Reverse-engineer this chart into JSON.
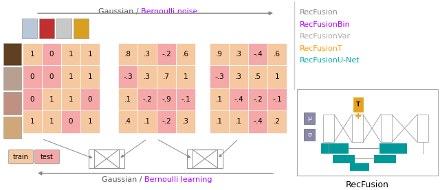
{
  "legend_items": [
    {
      "text": "RecFusion",
      "color": "#888888"
    },
    {
      "text": "RecFusionBin",
      "color": "#aa00ff"
    },
    {
      "text": "RecFusionVar",
      "color": "#aaaaaa"
    },
    {
      "text": "RecFusionT",
      "color": "#ff9900"
    },
    {
      "text": "RecFusionU-Net",
      "color": "#00aaaa"
    }
  ],
  "matrix1_values": [
    [
      "1",
      "0",
      "1",
      "1"
    ],
    [
      "0",
      "0",
      "1",
      "1"
    ],
    [
      "0",
      "1",
      "1",
      "0"
    ],
    [
      "1",
      "1",
      "0",
      "1"
    ]
  ],
  "matrix1_colors": [
    [
      "#f5c8a0",
      "#f5a8a8",
      "#f5c8a0",
      "#f5c8a0"
    ],
    [
      "#f5a8a8",
      "#f5a8a8",
      "#f5c8a0",
      "#f5c8a0"
    ],
    [
      "#f5a8a8",
      "#f5c8a0",
      "#f5c8a0",
      "#f5a8a8"
    ],
    [
      "#f5c8a0",
      "#f5c8a0",
      "#f5a8a8",
      "#f5c8a0"
    ]
  ],
  "matrix2_values": [
    [
      ".8",
      ".3",
      "-.2",
      ".6"
    ],
    [
      "-.3",
      ".3",
      ".7",
      "1"
    ],
    [
      ".1",
      "-.2",
      "-.9",
      "-.1"
    ],
    [
      ".4",
      ".1",
      "-.2",
      ".3"
    ]
  ],
  "matrix2_colors": [
    [
      "#f5c8a0",
      "#f5c8a0",
      "#f5a8a8",
      "#f5c8a0"
    ],
    [
      "#f5a8a8",
      "#f5c8a0",
      "#f5c8a0",
      "#f5c8a0"
    ],
    [
      "#f5c8a0",
      "#f5a8a8",
      "#f5a8a8",
      "#f5a8a8"
    ],
    [
      "#f5c8a0",
      "#f5c8a0",
      "#f5a8a8",
      "#f5c8a0"
    ]
  ],
  "matrix3_values": [
    [
      ".9",
      ".3",
      "-.4",
      ".6"
    ],
    [
      "-.3",
      ".3",
      ".5",
      "1"
    ],
    [
      ".1",
      "-.4",
      "-.2",
      "-.1"
    ],
    [
      ".1",
      ".1",
      "-.4",
      ".2"
    ]
  ],
  "matrix3_colors": [
    [
      "#f5c8a0",
      "#f5c8a0",
      "#f5a8a8",
      "#f5c8a0"
    ],
    [
      "#f5a8a8",
      "#f5c8a0",
      "#f5c8a0",
      "#f5c8a0"
    ],
    [
      "#f5c8a0",
      "#f5a8a8",
      "#f5a8a8",
      "#f5a8a8"
    ],
    [
      "#f5c8a0",
      "#f5c8a0",
      "#f5a8a8",
      "#f5c8a0"
    ]
  ],
  "teal_color": "#009999",
  "orange_color": "#e8a020",
  "gray_color": "#777777",
  "bg_color": "#ffffff",
  "train_color": "#f5c8a0",
  "test_color": "#f5a8a8",
  "movie_colors": [
    "#b8c8d8",
    "#c03030",
    "#c8c8c8",
    "#d8a020"
  ],
  "face_colors": [
    "#604020",
    "#b8a090",
    "#c09080",
    "#d0a878"
  ],
  "separator_color": "#cccccc",
  "arrow_color": "#888888",
  "bernoulli_color": "#aa00ff"
}
